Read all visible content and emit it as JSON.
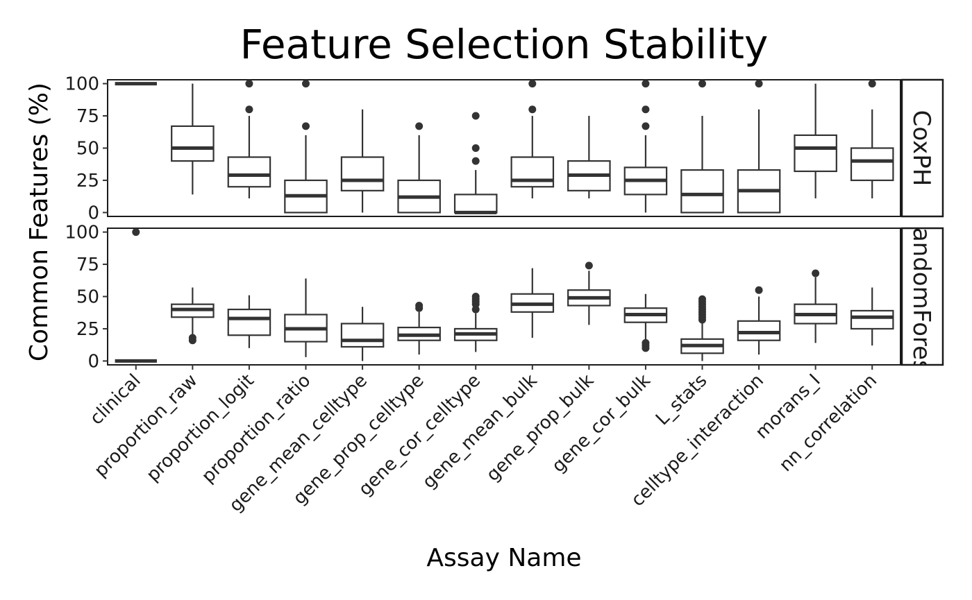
{
  "chart_data": {
    "type": "boxplot",
    "title": "Feature Selection Stability",
    "xlabel": "Assay Name",
    "ylabel": "Common Features (%)",
    "ylim": [
      -3,
      103
    ],
    "yticks": [
      0,
      25,
      50,
      75,
      100
    ],
    "categories": [
      "clinical",
      "proportion_raw",
      "proportion_logit",
      "proportion_ratio",
      "gene_mean_celltype",
      "gene_prop_celltype",
      "gene_cor_celltype",
      "gene_mean_bulk",
      "gene_prop_bulk",
      "gene_cor_bulk",
      "L_stats",
      "celltype_interaction",
      "morans_I",
      "nn_correlation"
    ],
    "panels": [
      {
        "name": "CoxPH",
        "strip_label": "CoxPH",
        "boxes": [
          {
            "lo": 100,
            "q1": 100,
            "med": 100,
            "q3": 100,
            "hi": 100,
            "outliers": []
          },
          {
            "lo": 14,
            "q1": 40,
            "med": 50,
            "q3": 67,
            "hi": 100,
            "outliers": []
          },
          {
            "lo": 11,
            "q1": 20,
            "med": 29,
            "q3": 43,
            "hi": 75,
            "outliers": [
              80,
              100
            ]
          },
          {
            "lo": 0,
            "q1": 0,
            "med": 13,
            "q3": 25,
            "hi": 60,
            "outliers": [
              67,
              100
            ]
          },
          {
            "lo": 0,
            "q1": 17,
            "med": 25,
            "q3": 43,
            "hi": 80,
            "outliers": []
          },
          {
            "lo": 0,
            "q1": 0,
            "med": 12,
            "q3": 25,
            "hi": 60,
            "outliers": [
              67
            ]
          },
          {
            "lo": 0,
            "q1": 0,
            "med": 0,
            "q3": 14,
            "hi": 33,
            "outliers": [
              40,
              50,
              75
            ]
          },
          {
            "lo": 11,
            "q1": 20,
            "med": 25,
            "q3": 43,
            "hi": 75,
            "outliers": [
              80,
              100
            ]
          },
          {
            "lo": 11,
            "q1": 17,
            "med": 29,
            "q3": 40,
            "hi": 75,
            "outliers": []
          },
          {
            "lo": 0,
            "q1": 14,
            "med": 25,
            "q3": 35,
            "hi": 60,
            "outliers": [
              67,
              80,
              100
            ]
          },
          {
            "lo": 0,
            "q1": 0,
            "med": 14,
            "q3": 33,
            "hi": 75,
            "outliers": [
              100
            ]
          },
          {
            "lo": 0,
            "q1": 0,
            "med": 17,
            "q3": 33,
            "hi": 80,
            "outliers": [
              100
            ]
          },
          {
            "lo": 11,
            "q1": 32,
            "med": 50,
            "q3": 60,
            "hi": 100,
            "outliers": []
          },
          {
            "lo": 11,
            "q1": 25,
            "med": 40,
            "q3": 50,
            "hi": 80,
            "outliers": [
              100
            ]
          }
        ]
      },
      {
        "name": "RandomForest",
        "strip_label": "RandomForest",
        "boxes": [
          {
            "lo": 0,
            "q1": 0,
            "med": 0,
            "q3": 0,
            "hi": 0,
            "outliers": [
              100
            ]
          },
          {
            "lo": 20,
            "q1": 34,
            "med": 40,
            "q3": 44,
            "hi": 57,
            "outliers": [
              16,
              18
            ]
          },
          {
            "lo": 10,
            "q1": 20,
            "med": 33,
            "q3": 40,
            "hi": 51,
            "outliers": []
          },
          {
            "lo": 3,
            "q1": 15,
            "med": 25,
            "q3": 36,
            "hi": 64,
            "outliers": []
          },
          {
            "lo": 0,
            "q1": 11,
            "med": 16,
            "q3": 29,
            "hi": 42,
            "outliers": []
          },
          {
            "lo": 5,
            "q1": 16,
            "med": 20,
            "q3": 26,
            "hi": 38,
            "outliers": [
              41,
              43
            ]
          },
          {
            "lo": 7,
            "q1": 16,
            "med": 21,
            "q3": 25,
            "hi": 37,
            "outliers": [
              40,
              44,
              46,
              48,
              50
            ]
          },
          {
            "lo": 18,
            "q1": 38,
            "med": 44,
            "q3": 52,
            "hi": 72,
            "outliers": []
          },
          {
            "lo": 28,
            "q1": 43,
            "med": 49,
            "q3": 55,
            "hi": 70,
            "outliers": [
              74
            ]
          },
          {
            "lo": 15,
            "q1": 30,
            "med": 36,
            "q3": 41,
            "hi": 52,
            "outliers": [
              10,
              12,
              14
            ]
          },
          {
            "lo": 0,
            "q1": 6,
            "med": 12,
            "q3": 17,
            "hi": 30,
            "outliers": [
              32,
              34,
              36,
              38,
              40,
              42,
              44,
              46,
              48
            ]
          },
          {
            "lo": 5,
            "q1": 16,
            "med": 22,
            "q3": 31,
            "hi": 50,
            "outliers": [
              55
            ]
          },
          {
            "lo": 14,
            "q1": 29,
            "med": 36,
            "q3": 44,
            "hi": 65,
            "outliers": [
              68
            ]
          },
          {
            "lo": 12,
            "q1": 25,
            "med": 34,
            "q3": 39,
            "hi": 57,
            "outliers": []
          }
        ]
      }
    ]
  }
}
